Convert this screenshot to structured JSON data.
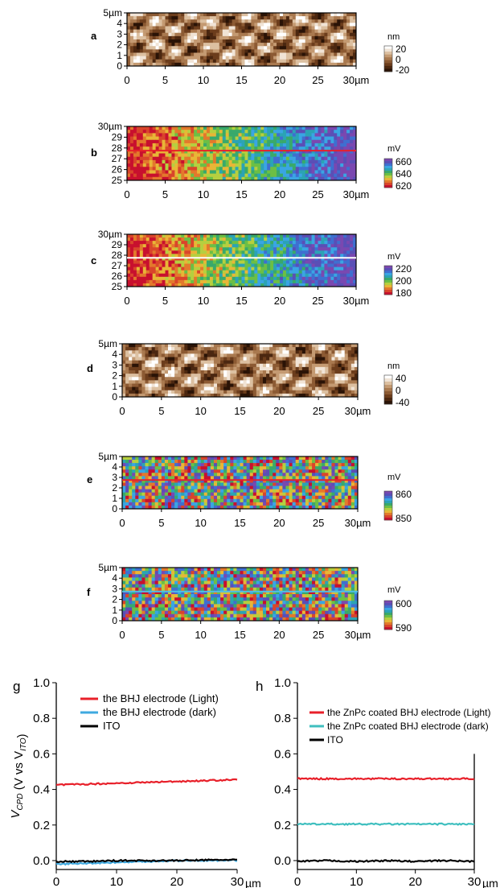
{
  "panels": [
    {
      "letter": "a",
      "kind": "height",
      "palette": "brown",
      "cb_unit": "nm",
      "cb_ticks": [
        "20",
        "0",
        "-20"
      ],
      "x_ticks": [
        "0",
        "5",
        "10",
        "15",
        "20",
        "25",
        "30µm"
      ],
      "y_ticks": [
        "0",
        "1",
        "2",
        "3",
        "4",
        "5µm"
      ],
      "scan_line": null
    },
    {
      "letter": "b",
      "kind": "potential",
      "palette": "rainbow",
      "cb_unit": "mV",
      "cb_ticks": [
        "660",
        "640",
        "620"
      ],
      "x_ticks": [
        "0",
        "5",
        "10",
        "15",
        "20",
        "25",
        "30µm"
      ],
      "y_ticks": [
        "25",
        "26",
        "27",
        "28",
        "29",
        "30µm"
      ],
      "scan_line": "#e8202a"
    },
    {
      "letter": "c",
      "kind": "potential",
      "palette": "rainbow",
      "cb_unit": "mV",
      "cb_ticks": [
        "220",
        "200",
        "180"
      ],
      "x_ticks": [
        "0",
        "5",
        "10",
        "15",
        "20",
        "25",
        "30µm"
      ],
      "y_ticks": [
        "25",
        "26",
        "27",
        "28",
        "29",
        "30µm"
      ],
      "scan_line": "#ffffff"
    },
    {
      "letter": "d",
      "kind": "height",
      "palette": "brown",
      "cb_unit": "nm",
      "cb_ticks": [
        "40",
        "0",
        "-40"
      ],
      "x_ticks": [
        "0",
        "5",
        "10",
        "15",
        "20",
        "25",
        "30µm"
      ],
      "y_ticks": [
        "0",
        "1",
        "2",
        "3",
        "4",
        "5µm"
      ],
      "scan_line": null
    },
    {
      "letter": "e",
      "kind": "potential",
      "palette": "rainbow",
      "cb_unit": "mV",
      "cb_ticks": [
        "860",
        "850"
      ],
      "x_ticks": [
        "0",
        "5",
        "10",
        "15",
        "20",
        "25",
        "30µm"
      ],
      "y_ticks": [
        "0",
        "1",
        "2",
        "3",
        "4",
        "5µm"
      ],
      "scan_line": "#e8202a"
    },
    {
      "letter": "f",
      "kind": "potential",
      "palette": "rainbow",
      "cb_unit": "mV",
      "cb_ticks": [
        "600",
        "590"
      ],
      "x_ticks": [
        "0",
        "5",
        "10",
        "15",
        "20",
        "25",
        "30µm"
      ],
      "y_ticks": [
        "0",
        "1",
        "2",
        "3",
        "4",
        "5µm"
      ],
      "scan_line": "#4fc1e8"
    }
  ],
  "chart_data": [
    {
      "type": "line",
      "panel_label": "g",
      "ylabel_main": "V",
      "ylabel_main_sub": "CPD",
      "ylabel_mid": " (V vs V",
      "ylabel_tail_sub": "ITO",
      "ylabel_end": ")",
      "x_unit": "µm",
      "xlim": [
        0,
        30
      ],
      "ylim": [
        -0.05,
        1.0
      ],
      "x_ticks": [
        "0",
        "10",
        "20",
        "30"
      ],
      "y_ticks": [
        "0.0",
        "0.2",
        "0.4",
        "0.6",
        "0.8",
        "1.0"
      ],
      "series": [
        {
          "name": "the BHJ electrode (Light)",
          "color": "#e8202a",
          "x": [
            0,
            5,
            10,
            15,
            20,
            25,
            30
          ],
          "y": [
            0.425,
            0.43,
            0.435,
            0.44,
            0.445,
            0.45,
            0.455
          ]
        },
        {
          "name": "the BHJ electrode (dark)",
          "color": "#3fa9e0",
          "x": [
            0,
            5,
            10,
            15,
            20,
            25,
            30
          ],
          "y": [
            -0.02,
            -0.015,
            -0.01,
            -0.005,
            0.0,
            0.0,
            0.002
          ]
        },
        {
          "name": "ITO",
          "color": "#000000",
          "x": [
            0,
            5,
            10,
            15,
            20,
            25,
            30
          ],
          "y": [
            -0.005,
            -0.005,
            0.0,
            0.0,
            0.0,
            0.003,
            0.005
          ]
        }
      ]
    },
    {
      "type": "line",
      "panel_label": "h",
      "x_unit": "µm",
      "xlim": [
        0,
        30
      ],
      "ylim": [
        -0.05,
        1.0
      ],
      "x_ticks": [
        "0",
        "10",
        "20",
        "30"
      ],
      "y_ticks": [
        "0.0",
        "0.2",
        "0.4",
        "0.6",
        "0.8",
        "1.0"
      ],
      "series": [
        {
          "name": "the ZnPc coated BHJ electrode (Light)",
          "color": "#e8202a",
          "x": [
            0,
            5,
            10,
            15,
            20,
            25,
            30
          ],
          "y": [
            0.46,
            0.46,
            0.46,
            0.46,
            0.46,
            0.46,
            0.46
          ]
        },
        {
          "name": "the ZnPc coated BHJ electrode (dark)",
          "color": "#3fbfbf",
          "x": [
            0,
            5,
            10,
            15,
            20,
            25,
            30
          ],
          "y": [
            0.205,
            0.205,
            0.205,
            0.205,
            0.205,
            0.205,
            0.205
          ]
        },
        {
          "name": "ITO",
          "color": "#000000",
          "x": [
            0,
            5,
            10,
            15,
            20,
            25,
            30
          ],
          "y": [
            -0.005,
            0.0,
            -0.005,
            0.0,
            -0.005,
            0.0,
            -0.005
          ]
        }
      ]
    }
  ]
}
